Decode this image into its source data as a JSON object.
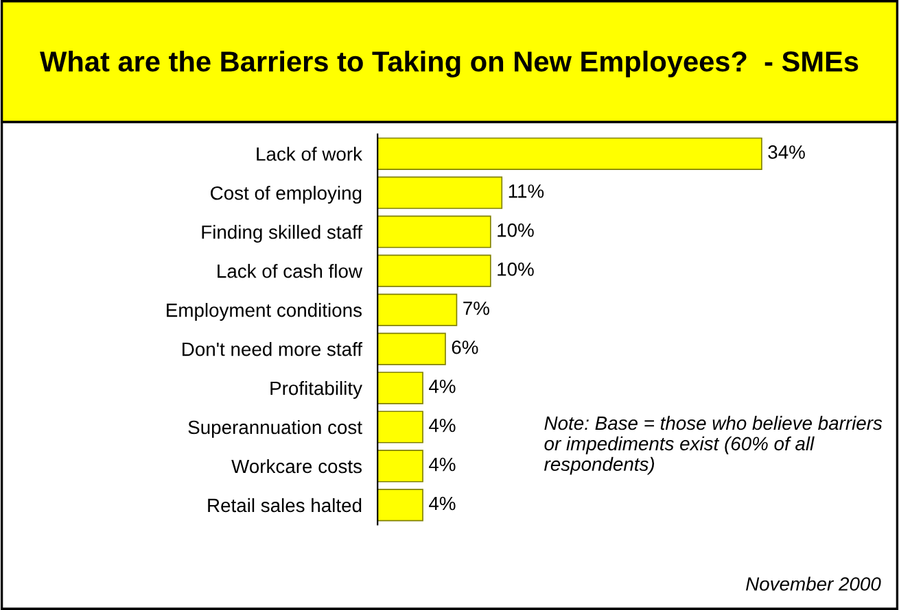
{
  "chart_data": {
    "type": "bar",
    "orientation": "horizontal",
    "title": "What are the Barriers to Taking on New Employees?  - SMEs",
    "categories": [
      "Lack of work",
      "Cost of employing",
      "Finding skilled staff",
      "Lack of cash flow",
      "Employment conditions",
      "Don't need more staff",
      "Profitability",
      "Superannuation cost",
      "Workcare costs",
      "Retail sales halted"
    ],
    "values": [
      34,
      11,
      10,
      10,
      7,
      6,
      4,
      4,
      4,
      4
    ],
    "value_labels": [
      "34%",
      "11%",
      "10%",
      "10%",
      "7%",
      "6%",
      "4%",
      "4%",
      "4%",
      "4%"
    ],
    "color": "#ffff00",
    "annotations": [
      "Note: Base = those who believe barriers or impediments exist (60% of all respondents)",
      "November 2000"
    ],
    "grid": false,
    "legend": false
  }
}
